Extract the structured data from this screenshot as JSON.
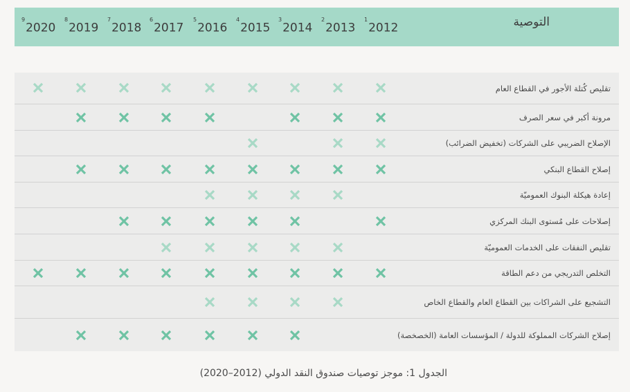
{
  "table": {
    "header": {
      "recommendation_label": "التوصية",
      "years": [
        {
          "year": "2012",
          "note": "1"
        },
        {
          "year": "2013",
          "note": "2"
        },
        {
          "year": "2014",
          "note": "3"
        },
        {
          "year": "2015",
          "note": "4"
        },
        {
          "year": "2016",
          "note": "5"
        },
        {
          "year": "2017",
          "note": "6"
        },
        {
          "year": "2018",
          "note": "7"
        },
        {
          "year": "2019",
          "note": "8"
        },
        {
          "year": "2020",
          "note": "9"
        }
      ]
    },
    "rows": [
      {
        "label": "تقليص كُتلة الأجور في القطاع العام",
        "marks": [
          "light",
          "light",
          "light",
          "light",
          "light",
          "light",
          "light",
          "light",
          "light"
        ]
      },
      {
        "label": "مرونة أكبر في سعر الصرف",
        "marks": [
          "dark",
          "dark",
          "dark",
          "",
          "dark",
          "dark",
          "dark",
          "dark",
          ""
        ]
      },
      {
        "label": "الإصلاح الضريبي على الشركات (تخفيض الضرائب)",
        "marks": [
          "light",
          "light",
          "",
          "light",
          "",
          "",
          "",
          "",
          ""
        ]
      },
      {
        "label": "إصلاح القطاع البنكي",
        "marks": [
          "dark",
          "dark",
          "dark",
          "dark",
          "dark",
          "dark",
          "dark",
          "dark",
          ""
        ]
      },
      {
        "label": "إعادة هيكلة البنوك العموميّة",
        "marks": [
          "",
          "light",
          "light",
          "light",
          "light",
          "",
          "",
          "",
          ""
        ]
      },
      {
        "label": "إصلاحات على مُستوى البنك المركزي",
        "marks": [
          "dark",
          "",
          "dark",
          "dark",
          "dark",
          "dark",
          "dark",
          "",
          ""
        ]
      },
      {
        "label": "تقليص النفقات على الخدمات العموميّة",
        "marks": [
          "",
          "light",
          "light",
          "light",
          "light",
          "light",
          "",
          "",
          ""
        ]
      },
      {
        "label": "التخلص التدريجي من دعم الطاقة",
        "marks": [
          "dark",
          "dark",
          "dark",
          "dark",
          "dark",
          "dark",
          "dark",
          "dark",
          "dark"
        ]
      },
      {
        "label": "التشجيع على الشراكات بين القطاع العام والقطاع الخاص",
        "marks": [
          "",
          "light",
          "light",
          "light",
          "light",
          "",
          "",
          "",
          ""
        ]
      },
      {
        "label": "إصلاح الشركات المملوكة للدولة / المؤسسات العامة (الخصخصة)",
        "marks": [
          "",
          "",
          "dark",
          "dark",
          "dark",
          "dark",
          "dark",
          "dark",
          ""
        ]
      }
    ]
  },
  "caption": "الجدول 1: موجز توصيات صندوق النقد الدولي (2012–2020)",
  "colors": {
    "dark": "#6fc3a4",
    "light": "#a8d9c6",
    "header": "#a5d9c8"
  }
}
